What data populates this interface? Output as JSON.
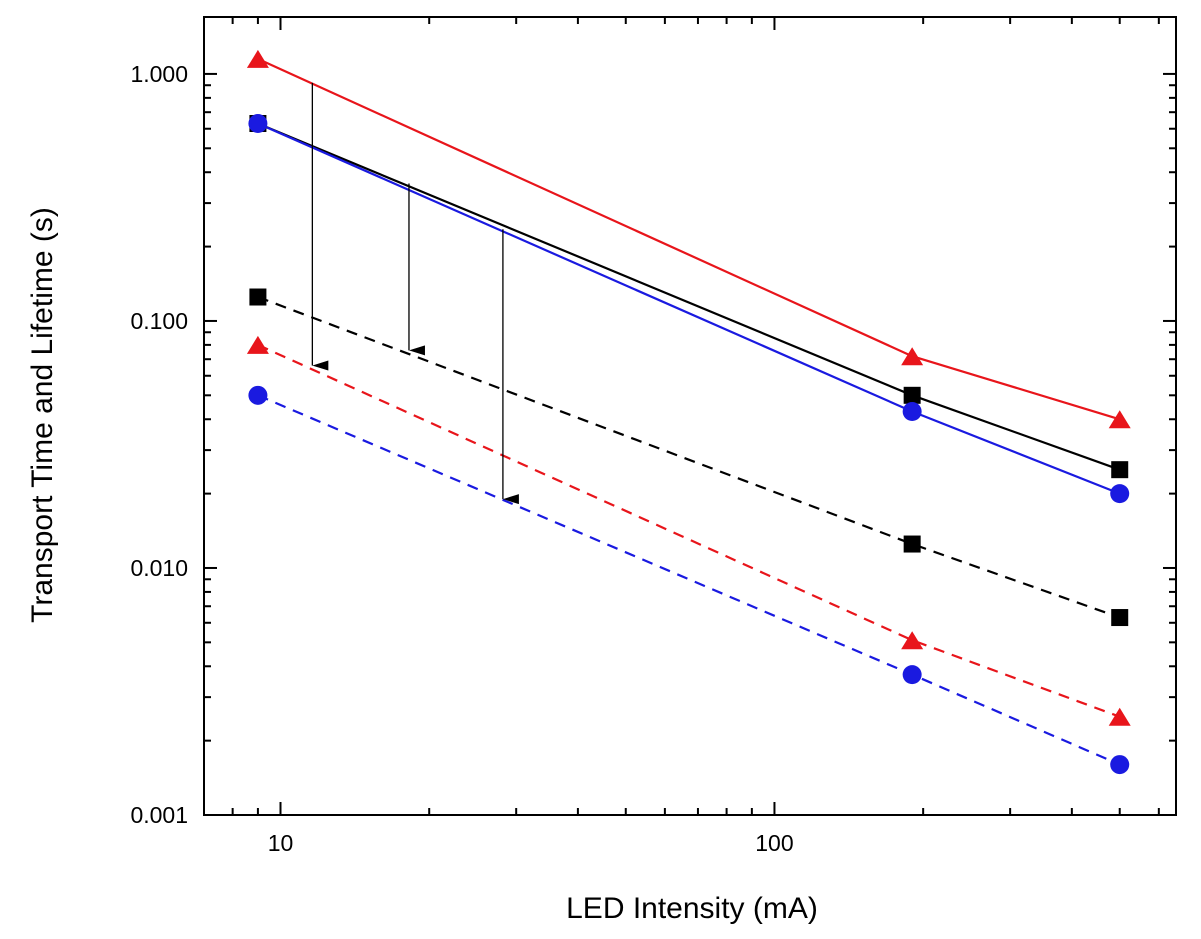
{
  "chart_data": {
    "type": "line",
    "title": "",
    "xlabel": "LED Intensity (mA)",
    "ylabel": "Transport Time and Lifetime (s)",
    "xscale": "log",
    "yscale": "log",
    "xlim": [
      7.0,
      650
    ],
    "ylim": [
      0.001,
      1.7
    ],
    "x": [
      9,
      190,
      500
    ],
    "x_ticks": [
      {
        "value": 10,
        "label": "10"
      },
      {
        "value": 100,
        "label": "100"
      }
    ],
    "y_ticks": [
      {
        "value": 0.001,
        "label": "0.001"
      },
      {
        "value": 0.01,
        "label": "0.010"
      },
      {
        "value": 0.1,
        "label": "0.100"
      },
      {
        "value": 1,
        "label": "1.000"
      }
    ],
    "series": [
      {
        "name": "red-solid",
        "color": "#e8151b",
        "marker": "triangle",
        "dash": false,
        "values": [
          1.15,
          0.072,
          0.04
        ]
      },
      {
        "name": "black-solid",
        "color": "#000000",
        "marker": "square",
        "dash": false,
        "values": [
          0.63,
          0.05,
          0.025
        ]
      },
      {
        "name": "blue-solid",
        "color": "#1a1ae0",
        "marker": "circle",
        "dash": false,
        "values": [
          0.63,
          0.043,
          0.02
        ]
      },
      {
        "name": "black-dashed",
        "color": "#000000",
        "marker": "square",
        "dash": true,
        "values": [
          0.125,
          0.0125,
          0.0063
        ]
      },
      {
        "name": "red-dashed",
        "color": "#e8151b",
        "marker": "triangle",
        "dash": true,
        "values": [
          0.08,
          0.0051,
          0.0025
        ]
      },
      {
        "name": "blue-dashed",
        "color": "#1a1ae0",
        "marker": "circle",
        "dash": true,
        "values": [
          0.05,
          0.0037,
          0.0016
        ]
      }
    ],
    "annotations": [
      {
        "type": "arrow",
        "x": 11.6,
        "y_from": 0.92,
        "y_to": 0.066
      },
      {
        "type": "arrow",
        "x": 18.2,
        "y_from": 0.36,
        "y_to": 0.076
      },
      {
        "type": "arrow",
        "x": 28.2,
        "y_from": 0.235,
        "y_to": 0.019
      }
    ]
  }
}
